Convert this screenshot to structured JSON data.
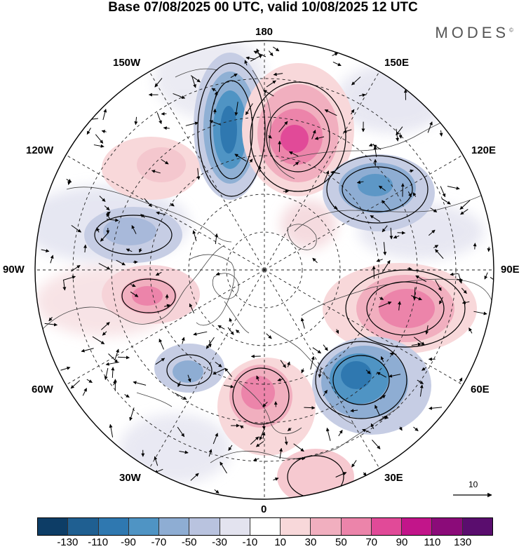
{
  "title": "Base 07/08/2025 00 UTC, valid 10/08/2025 12 UTC",
  "brand": "MODES",
  "brand_mark": "©",
  "longitude_labels": {
    "top": "180",
    "bottom": "0",
    "left": "90W",
    "right": "90E",
    "upper_left": "150W",
    "upper_right": "150E",
    "mid_left": "120W",
    "mid_right": "120E",
    "lower_left": "60W",
    "lower_right": "60E",
    "bottom_left": "30W",
    "bottom_right": "30E"
  },
  "reference_vector": {
    "label": "10"
  },
  "colorbar": {
    "tick_labels": [
      "-130",
      "-110",
      "-90",
      "-70",
      "-50",
      "-30",
      "-10",
      "10",
      "30",
      "50",
      "70",
      "90",
      "110",
      "130"
    ],
    "colors": [
      "#0d3d66",
      "#1f5f91",
      "#2f78b0",
      "#4f94c4",
      "#8eadd3",
      "#b9c3df",
      "#e3e3ef",
      "#ffffff",
      "#f8d8da",
      "#f1afbf",
      "#ec84aa",
      "#e14a98",
      "#c2158a",
      "#8b0b79",
      "#5a0d6e"
    ]
  },
  "anomaly_centers": [
    {
      "name": "pacific-low",
      "sign": "negative",
      "value": -90
    },
    {
      "name": "bering-high",
      "sign": "positive",
      "value": 90
    },
    {
      "name": "east-siberia-low",
      "sign": "negative",
      "value": -70
    },
    {
      "name": "ural-high",
      "sign": "positive",
      "value": 70
    },
    {
      "name": "scandinavia-low",
      "sign": "negative",
      "value": -90
    },
    {
      "name": "western-europe-high",
      "sign": "positive",
      "value": 70
    },
    {
      "name": "hudson-bay-high",
      "sign": "positive",
      "value": 70
    },
    {
      "name": "canada-low",
      "sign": "negative",
      "value": -50
    },
    {
      "name": "north-atlantic-low",
      "sign": "negative",
      "value": -50
    }
  ]
}
